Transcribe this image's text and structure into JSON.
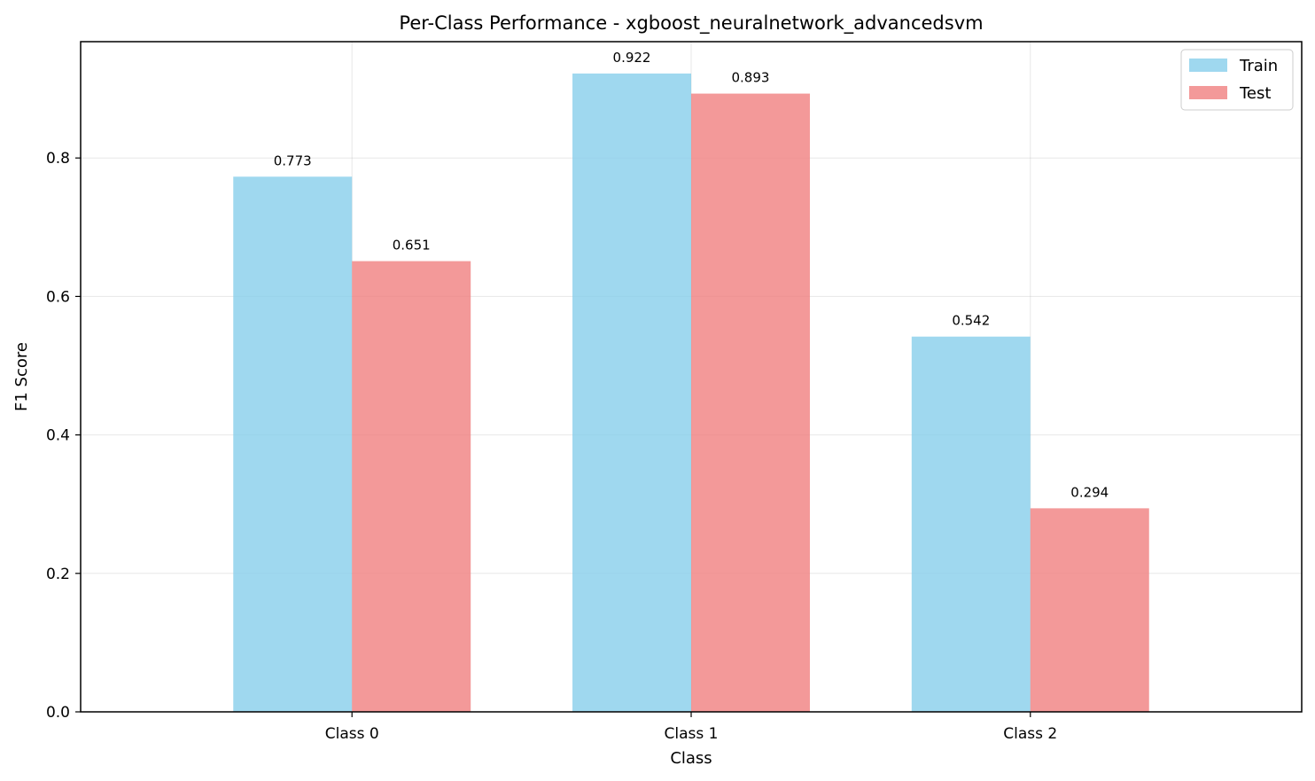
{
  "chart_data": {
    "type": "bar",
    "title": "Per-Class Performance - xgboost_neuralnetwork_advancedsvm",
    "xlabel": "Class",
    "ylabel": "F1 Score",
    "categories": [
      "Class 0",
      "Class 1",
      "Class 2"
    ],
    "series": [
      {
        "name": "Train",
        "values": [
          0.773,
          0.922,
          0.542
        ],
        "labels": [
          "0.773",
          "0.922",
          "0.542"
        ],
        "color": "#87CEEB"
      },
      {
        "name": "Test",
        "values": [
          0.651,
          0.893,
          0.294
        ],
        "labels": [
          "0.651",
          "0.893",
          "0.294"
        ],
        "color": "#F08080"
      }
    ],
    "ylim": [
      0,
      0.968
    ],
    "yticks": [
      0.0,
      0.2,
      0.4,
      0.6,
      0.8
    ],
    "ytick_labels": [
      "0.0",
      "0.2",
      "0.4",
      "0.6",
      "0.8"
    ],
    "grid": true,
    "legend_position": "top-right"
  }
}
